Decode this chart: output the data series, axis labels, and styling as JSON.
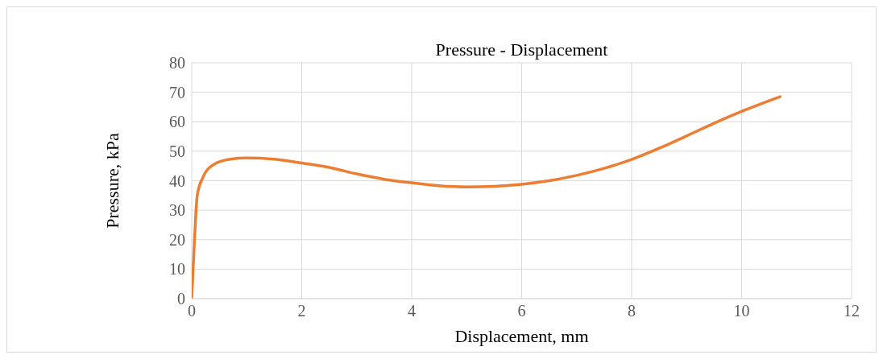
{
  "chart_data": {
    "type": "line",
    "title": "Pressure - Displacement",
    "xlabel": "Displacement, mm",
    "ylabel": "Pressure, kPa",
    "x": [
      0,
      0.05,
      0.1,
      0.2,
      0.4,
      0.7,
      1,
      1.5,
      2,
      2.5,
      3,
      3.5,
      4,
      4.5,
      5,
      5.5,
      6,
      6.5,
      7,
      7.5,
      8,
      8.5,
      9,
      9.5,
      10,
      10.7
    ],
    "series": [
      {
        "color": "#ed7d31",
        "values": [
          0,
          20,
          35,
          41,
          45.5,
          47.3,
          47.7,
          47.3,
          46,
          44.5,
          42.3,
          40.5,
          39.3,
          38.3,
          37.9,
          38.1,
          38.8,
          40,
          41.8,
          44.2,
          47.2,
          51,
          55.2,
          59.5,
          63.5,
          68.5
        ]
      }
    ],
    "xlim": [
      0,
      12
    ],
    "xticks": [
      0,
      2,
      4,
      6,
      8,
      10,
      12
    ],
    "ylim": [
      0,
      80
    ],
    "yticks": [
      0,
      10,
      20,
      30,
      40,
      50,
      60,
      70,
      80
    ],
    "grid": true,
    "legend": false,
    "marker": "none",
    "line_style": "solid"
  }
}
